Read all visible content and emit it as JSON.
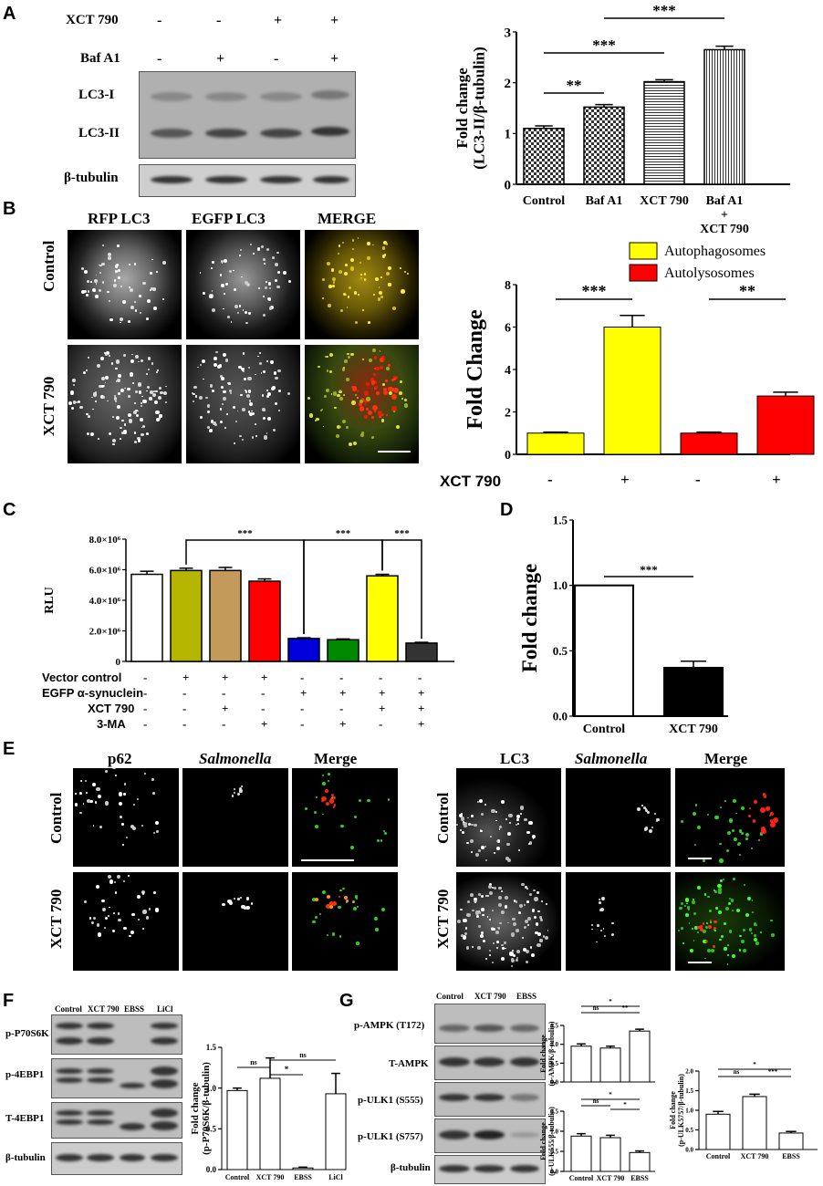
{
  "panels": {
    "A": "A",
    "B": "B",
    "C": "C",
    "D": "D",
    "E": "E",
    "F": "F",
    "G": "G"
  },
  "panelA": {
    "row_labels": [
      "XCT 790",
      "Baf A1"
    ],
    "signs_xct": [
      "-",
      "-",
      "+",
      "+"
    ],
    "signs_baf": [
      "-",
      "+",
      "-",
      "+"
    ],
    "blot_labels": [
      "LC3-I",
      "LC3-II",
      "β-tubulin"
    ]
  },
  "panelB": {
    "col_labels": [
      "RFP LC3",
      "EGFP LC3",
      "MERGE"
    ],
    "row_labels": [
      "Control",
      "XCT 790"
    ],
    "xct_label": "XCT 790",
    "xct_signs": [
      "-",
      "+",
      "-",
      "+"
    ]
  },
  "panelC": {
    "treatments": [
      {
        "label": "Vector control",
        "signs": [
          "-",
          "+",
          "+",
          "+",
          "-",
          "-",
          "-",
          "-"
        ]
      },
      {
        "label": "EGFP α-synuclein",
        "signs": [
          "-",
          "-",
          "-",
          "-",
          "+",
          "+",
          "+",
          "+"
        ]
      },
      {
        "label": "XCT 790",
        "signs": [
          "-",
          "-",
          "+",
          "-",
          "-",
          "-",
          "+",
          "+"
        ]
      },
      {
        "label": "3-MA",
        "signs": [
          "-",
          "-",
          "-",
          "+",
          "-",
          "+",
          "-",
          "+"
        ]
      }
    ]
  },
  "panelE": {
    "left_cols": [
      "p62",
      "Salmonella",
      "Merge"
    ],
    "right_cols": [
      "LC3",
      "Salmonella",
      "Merge"
    ],
    "row_labels": [
      "Control",
      "XCT 790"
    ]
  },
  "panelF": {
    "lanes": [
      "Control",
      "XCT 790",
      "EBSS",
      "LiCl"
    ],
    "blot_labels": [
      "p-P70S6K",
      "p-4EBP1",
      "T-4EBP1",
      "β-tubulin"
    ]
  },
  "panelG": {
    "lanes": [
      "Control",
      "XCT 790",
      "EBSS"
    ],
    "blot_labels": [
      "p-AMPK (T172)",
      "T-AMPK",
      "p-ULK1 (S555)",
      "p-ULK1 (S757)",
      "β-tubulin"
    ]
  },
  "chart_data": [
    {
      "id": "A",
      "type": "bar",
      "categories": [
        "Control",
        "Baf A1",
        "XCT 790",
        "Baf A1\n+\nXCT 790"
      ],
      "values": [
        1.1,
        1.52,
        2.02,
        2.65
      ],
      "errors": [
        0.05,
        0.05,
        0.04,
        0.07
      ],
      "ylabel": "Fold change\n(LC3-II/β-tubulin)",
      "ylim": [
        0,
        3
      ],
      "yticks": [
        "0",
        "1",
        "2",
        "3"
      ],
      "significance": [
        "**",
        "***",
        "***"
      ]
    },
    {
      "id": "B",
      "type": "bar",
      "categories": [
        "-",
        "+",
        "-",
        "+"
      ],
      "series": [
        {
          "name": "Autophagosomes",
          "color": "#ffff00"
        },
        {
          "name": "Autolysosomes",
          "color": "#ff0000"
        }
      ],
      "values": [
        1.0,
        6.0,
        1.0,
        2.75
      ],
      "errors": [
        0.05,
        0.55,
        0.05,
        0.18
      ],
      "ylabel": "Fold Change",
      "ylim": [
        0,
        8
      ],
      "yticks": [
        "0",
        "2",
        "4",
        "6",
        "8"
      ],
      "significance": [
        "***",
        "**"
      ]
    },
    {
      "id": "C",
      "type": "bar",
      "values": [
        5.7,
        5.95,
        5.95,
        5.25,
        1.5,
        1.42,
        5.6,
        1.2
      ],
      "errors": [
        0.2,
        0.15,
        0.2,
        0.15,
        0.05,
        0.05,
        0.1,
        0.05
      ],
      "colors": [
        "#ffffff",
        "#b5b500",
        "#c49a5a",
        "#ff0000",
        "#0000dd",
        "#008800",
        "#ffff00",
        "#333333"
      ],
      "ylabel": "RLU",
      "ylim": [
        0,
        8
      ],
      "yticks": [
        "0",
        "2.0×10⁶",
        "4.0×10⁶",
        "6.0×10⁶",
        "8.0×10⁶"
      ],
      "significance": [
        "***",
        "***",
        "***"
      ]
    },
    {
      "id": "D",
      "type": "bar",
      "categories": [
        "Control",
        "XCT 790"
      ],
      "values": [
        1.0,
        0.37
      ],
      "errors": [
        0.0,
        0.05
      ],
      "ylabel": "Fold change",
      "ylim": [
        0,
        1.5
      ],
      "yticks": [
        "0.0",
        "0.5",
        "1.0",
        "1.5"
      ],
      "significance": [
        "***"
      ]
    },
    {
      "id": "F",
      "type": "bar",
      "categories": [
        "Control",
        "XCT 790",
        "EBSS",
        "LiCl"
      ],
      "values": [
        0.97,
        1.12,
        0.02,
        0.93
      ],
      "errors": [
        0.03,
        0.25,
        0.01,
        0.25
      ],
      "ylabel": "Fold change\n(p-P70S6K/β-tubulin)",
      "ylim": [
        0,
        1.5
      ],
      "yticks": [
        "0.0",
        "0.5",
        "1.0",
        "1.5"
      ],
      "significance": [
        "ns",
        "*",
        "ns"
      ]
    },
    {
      "id": "G1",
      "type": "bar",
      "categories": [
        "",
        "",
        ""
      ],
      "values": [
        0.95,
        0.9,
        1.35
      ],
      "errors": [
        0.06,
        0.05,
        0.05
      ],
      "ylabel": "Fold change\n(p-AMPK/β-tubulin)",
      "ylim": [
        0,
        1.5
      ],
      "yticks": [
        "0.0",
        "0.5",
        "1.0",
        "1.5"
      ],
      "significance": [
        "ns",
        "**",
        "*"
      ]
    },
    {
      "id": "G2",
      "type": "bar",
      "categories": [
        "Control",
        "XCT 790",
        "EBSS"
      ],
      "values": [
        0.88,
        0.84,
        0.47
      ],
      "errors": [
        0.06,
        0.06,
        0.04
      ],
      "ylabel": "Fold change\n(p-ULK555/β-tubulin)",
      "ylim": [
        0,
        1.5
      ],
      "yticks": [
        "0.0",
        "0.5",
        "1.0",
        "1.5"
      ],
      "significance": [
        "ns",
        "*",
        "*"
      ]
    },
    {
      "id": "G3",
      "type": "bar",
      "categories": [
        "Control",
        "XCT 790",
        "EBSS"
      ],
      "values": [
        0.9,
        1.35,
        0.42
      ],
      "errors": [
        0.07,
        0.06,
        0.04
      ],
      "ylabel": "Fold change\n(p-ULK5757/β-tubulin)",
      "ylim": [
        0,
        2.0
      ],
      "yticks": [
        "0.0",
        "0.5",
        "1.0",
        "1.5",
        "2.0"
      ],
      "significance": [
        "ns",
        "***",
        "*"
      ]
    }
  ]
}
